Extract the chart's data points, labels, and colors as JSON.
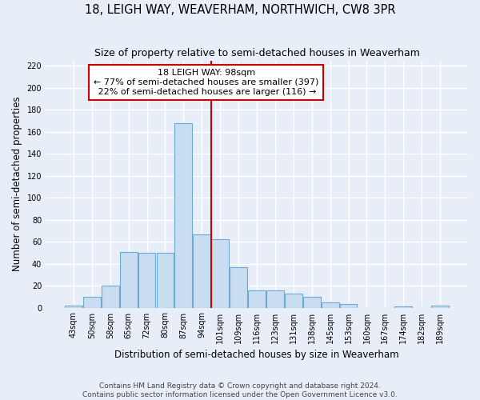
{
  "title": "18, LEIGH WAY, WEAVERHAM, NORTHWICH, CW8 3PR",
  "subtitle": "Size of property relative to semi-detached houses in Weaverham",
  "xlabel": "Distribution of semi-detached houses by size in Weaverham",
  "ylabel": "Number of semi-detached properties",
  "categories": [
    "43sqm",
    "50sqm",
    "58sqm",
    "65sqm",
    "72sqm",
    "80sqm",
    "87sqm",
    "94sqm",
    "101sqm",
    "109sqm",
    "116sqm",
    "123sqm",
    "131sqm",
    "138sqm",
    "145sqm",
    "153sqm",
    "160sqm",
    "167sqm",
    "174sqm",
    "182sqm",
    "189sqm"
  ],
  "values": [
    2,
    10,
    20,
    51,
    50,
    50,
    168,
    67,
    62,
    37,
    16,
    16,
    13,
    10,
    5,
    3,
    0,
    0,
    1,
    0,
    2
  ],
  "bar_color": "#c8ddf0",
  "bar_edge_color": "#6aaad4",
  "property_label": "18 LEIGH WAY: 98sqm",
  "pct_smaller": 77,
  "pct_larger": 22,
  "n_smaller": 397,
  "n_larger": 116,
  "vline_index": 8,
  "vline_color": "#cc0000",
  "box_color": "#cc0000",
  "ylim": [
    0,
    225
  ],
  "yticks": [
    0,
    20,
    40,
    60,
    80,
    100,
    120,
    140,
    160,
    180,
    200,
    220
  ],
  "footnote1": "Contains HM Land Registry data © Crown copyright and database right 2024.",
  "footnote2": "Contains public sector information licensed under the Open Government Licence v3.0.",
  "bg_color": "#e8eef8",
  "grid_color": "#ffffff",
  "title_fontsize": 10.5,
  "subtitle_fontsize": 9,
  "axis_label_fontsize": 8.5,
  "tick_fontsize": 7,
  "footnote_fontsize": 6.5,
  "annotation_fontsize": 8
}
